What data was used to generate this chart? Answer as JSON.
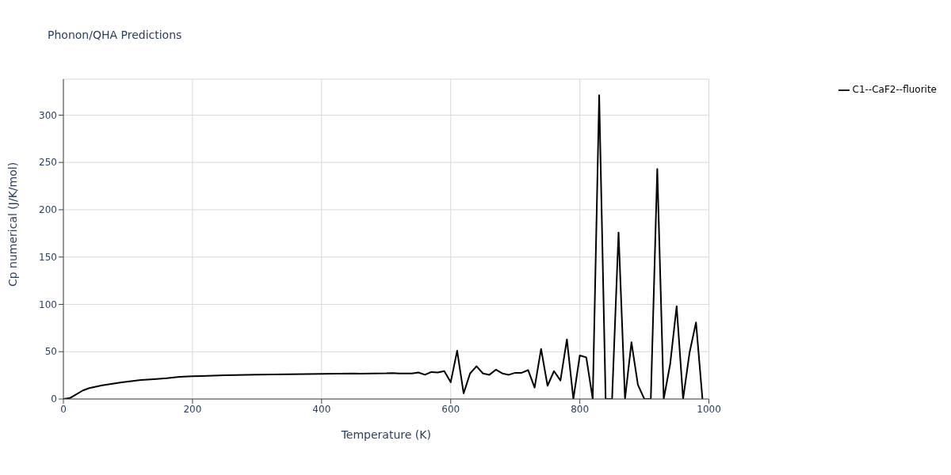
{
  "chart_data": {
    "type": "line",
    "title": "Phonon/QHA Predictions",
    "xlabel": "Temperature (K)",
    "ylabel": "Cp numerical (J/K/mol)",
    "x": [
      0,
      10,
      20,
      30,
      40,
      50,
      60,
      70,
      80,
      90,
      100,
      120,
      140,
      160,
      180,
      200,
      250,
      300,
      350,
      400,
      450,
      460,
      500,
      510,
      520,
      540,
      550,
      560,
      570,
      580,
      590,
      600,
      610,
      620,
      630,
      640,
      650,
      660,
      670,
      680,
      690,
      700,
      710,
      720,
      730,
      740,
      750,
      760,
      770,
      780,
      790,
      800,
      810,
      820,
      830,
      840,
      850,
      860,
      870,
      880,
      890,
      900,
      910,
      920,
      930,
      940,
      950,
      960,
      970,
      980,
      990
    ],
    "series": [
      {
        "name": "C1--CaF2--fluorite",
        "color": "#000000",
        "values": [
          0,
          1,
          5,
          9,
          11.5,
          13,
          14.5,
          15.5,
          16.5,
          17.5,
          18.5,
          20,
          21,
          22,
          23.5,
          24,
          25,
          25.8,
          26.2,
          26.6,
          27,
          26.8,
          27.2,
          27.5,
          27,
          27,
          28,
          25.6,
          28.5,
          28,
          29.5,
          17.7,
          51,
          6,
          27,
          34.6,
          27,
          25.6,
          31,
          27,
          25.6,
          27.7,
          27.7,
          30.5,
          12,
          53,
          14,
          29.5,
          19.6,
          63,
          0,
          46,
          44,
          0,
          321,
          0,
          0,
          176,
          0,
          60,
          15,
          0,
          0,
          243,
          0,
          37,
          98,
          0,
          49,
          81,
          0
        ]
      }
    ],
    "xlim": [
      0,
      1000
    ],
    "xticks": [
      0,
      200,
      400,
      600,
      800,
      1000
    ],
    "ylim": [
      0,
      338
    ],
    "yticks": [
      0,
      50,
      100,
      150,
      200,
      250,
      300
    ],
    "grid": true,
    "legend": "top right",
    "line_style": "solid"
  }
}
